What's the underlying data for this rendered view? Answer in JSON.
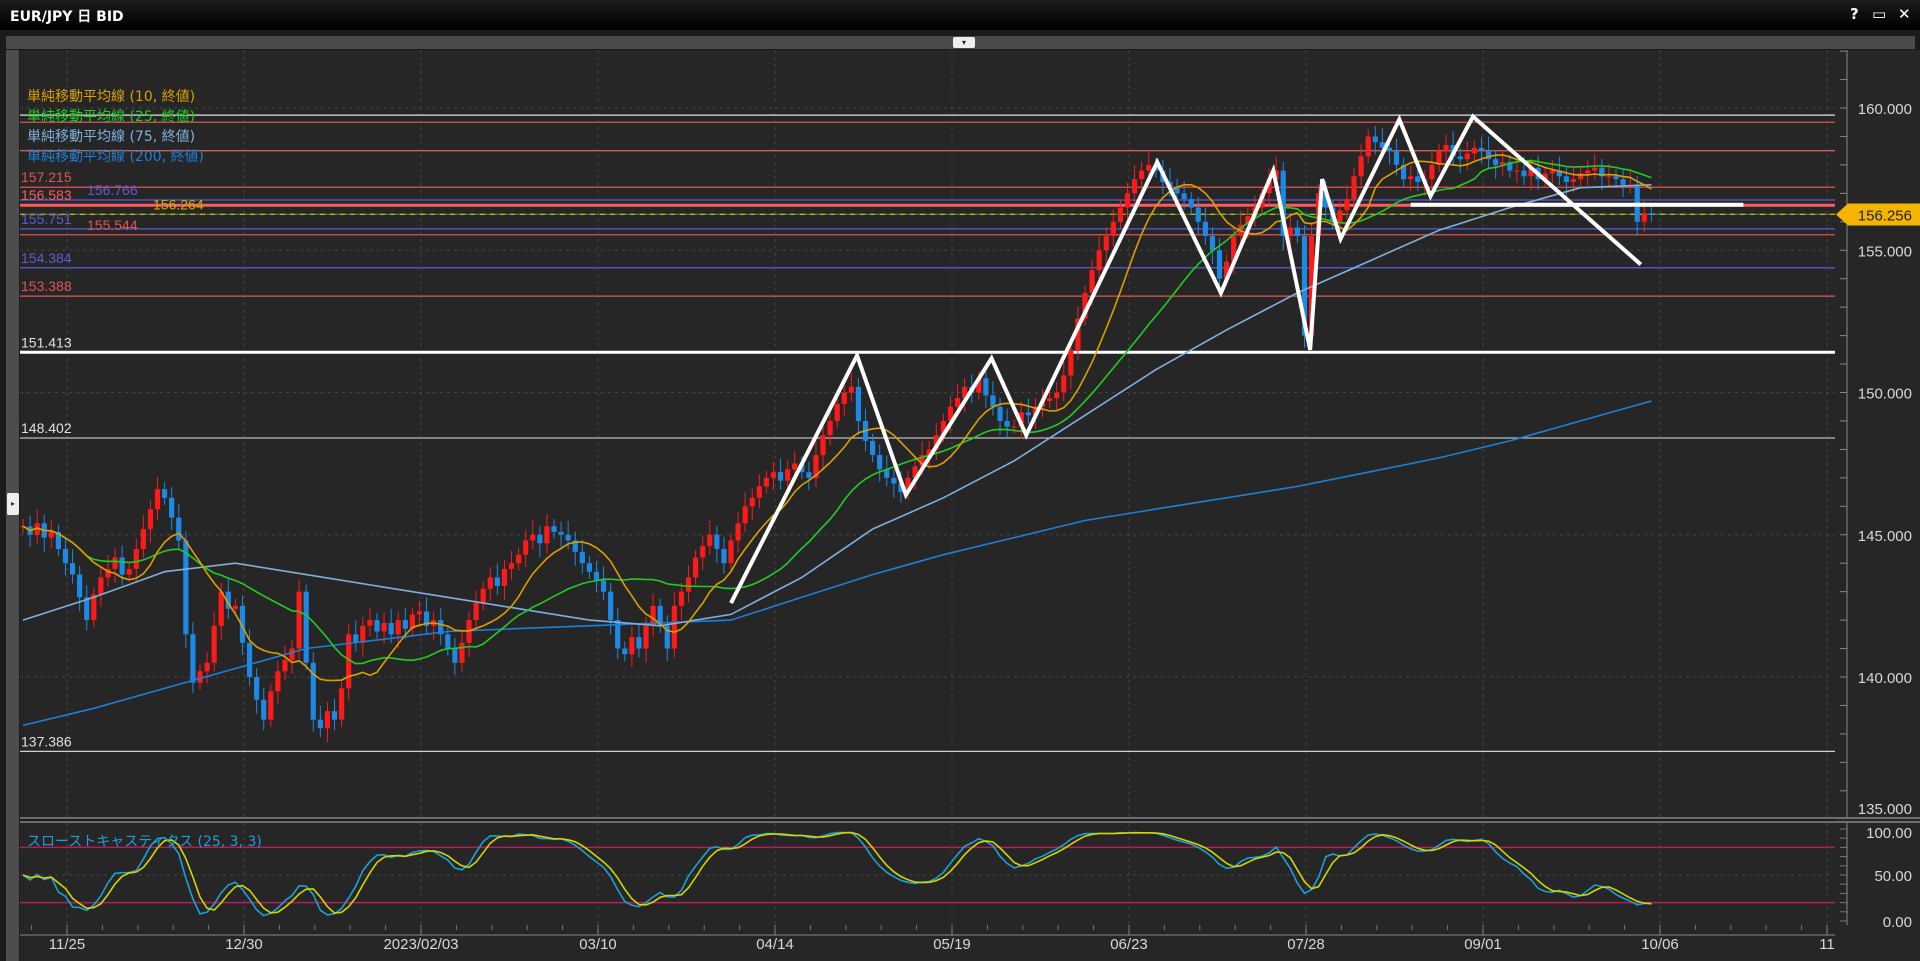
{
  "window": {
    "title": "EUR/JPY 日 BID",
    "buttons": {
      "help": "?",
      "maximize": "▭",
      "close": "✕"
    },
    "dropdown_icon": "▾",
    "side_tab_icon": "▸"
  },
  "legend": [
    {
      "label": "単純移動平均線 (10, 終値)",
      "color": "#d9a000"
    },
    {
      "label": "単純移動平均線 (25, 終値)",
      "color": "#22cc22"
    },
    {
      "label": "単純移動平均線 (75, 終値)",
      "color": "#7fb0de"
    },
    {
      "label": "単純移動平均線 (200, 終値)",
      "color": "#1e7fd8"
    }
  ],
  "stochastic": {
    "label": "スローストキャスティクス (25, 3, 3)",
    "k_color": "#1ba1d6",
    "d_color": "#d4d400",
    "levels": [
      80,
      20
    ],
    "level_color": "#c2185b",
    "axis_labels": [
      "100.00",
      "50.00",
      "0.00"
    ]
  },
  "chart_data": {
    "type": "candlestick",
    "symbol": "EUR/JPY",
    "timeframe": "日",
    "colors": {
      "up": "#ff1a1a",
      "down": "#1e88e5",
      "background": "#262626"
    },
    "ylim": [
      135,
      161.5
    ],
    "y_ticks": [
      "160.000",
      "155.000",
      "150.000",
      "145.000",
      "140.000",
      "135.000"
    ],
    "x_ticks": [
      "11/25",
      "12/30",
      "2023/02/03",
      "03/10",
      "04/14",
      "05/19",
      "06/23",
      "07/28",
      "09/01",
      "10/06",
      "11"
    ],
    "current_price": "156.256",
    "current_price_color": "#f5b400",
    "closes": [
      145.3,
      145.0,
      145.4,
      144.9,
      145.1,
      144.5,
      144.0,
      143.6,
      142.8,
      142.0,
      142.9,
      143.5,
      143.8,
      144.2,
      143.6,
      143.8,
      144.5,
      145.2,
      145.9,
      146.6,
      146.3,
      145.6,
      144.8,
      141.5,
      139.8,
      140.2,
      140.5,
      141.8,
      143.0,
      142.4,
      142.5,
      141.2,
      140.0,
      139.2,
      138.5,
      139.5,
      140.2,
      140.6,
      141.0,
      143.0,
      140.5,
      138.5,
      138.2,
      138.8,
      138.5,
      139.6,
      141.5,
      141.2,
      141.8,
      142.0,
      141.6,
      141.9,
      141.5,
      142.0,
      141.7,
      142.2,
      142.3,
      141.8,
      142.0,
      141.5,
      141.0,
      140.5,
      141.2,
      142.0,
      142.6,
      143.1,
      143.5,
      143.2,
      143.8,
      144.0,
      144.3,
      144.8,
      145.0,
      144.7,
      145.3,
      145.1,
      145.0,
      144.8,
      144.4,
      144.0,
      143.7,
      143.4,
      143.0,
      142.0,
      141.0,
      140.8,
      141.4,
      141.0,
      141.8,
      142.5,
      141.8,
      141.0,
      142.5,
      143.0,
      143.5,
      144.2,
      144.6,
      145.0,
      144.5,
      144.0,
      144.8,
      145.4,
      146.0,
      146.3,
      146.7,
      147.0,
      147.2,
      146.9,
      147.3,
      147.5,
      147.2,
      147.0,
      147.8,
      148.5,
      149.0,
      149.6,
      150.0,
      150.2,
      149.0,
      148.3,
      147.8,
      147.3,
      147.0,
      146.8,
      146.5,
      147.0,
      147.4,
      147.8,
      148.0,
      148.5,
      149.0,
      149.5,
      149.8,
      150.2,
      150.0,
      150.5,
      149.9,
      149.5,
      149.0,
      148.8,
      148.8,
      149.3,
      149.2,
      149.5,
      149.7,
      149.8,
      150.0,
      150.6,
      151.5,
      152.6,
      153.5,
      154.3,
      155.0,
      155.5,
      156.0,
      156.5,
      157.0,
      157.5,
      157.8,
      158.0,
      157.8,
      157.4,
      157.2,
      157.0,
      156.8,
      156.5,
      156.0,
      155.5,
      155.0,
      154.0,
      154.6,
      155.5,
      155.9,
      156.2,
      156.5,
      157.0,
      157.5,
      157.8,
      155.5,
      155.8,
      155.5,
      152.0,
      155.5,
      157.0,
      156.5,
      156.0,
      156.4,
      156.8,
      157.6,
      158.3,
      159.0,
      158.8,
      158.6,
      158.5,
      158.0,
      157.5,
      157.6,
      157.4,
      157.5,
      158.0,
      158.5,
      158.7,
      158.3,
      158.2,
      158.4,
      158.6,
      158.5,
      158.2,
      158.0,
      158.1,
      157.8,
      157.8,
      157.6,
      157.9,
      157.5,
      157.7,
      157.8,
      157.6,
      157.4,
      157.5,
      157.7,
      157.8,
      157.9,
      157.6,
      157.6,
      157.5,
      157.3,
      157.3,
      156.0,
      156.3,
      156.25
    ],
    "ma75_every_10_bars": [
      142.0,
      142.8,
      143.7,
      144.0,
      143.6,
      143.2,
      142.8,
      142.4,
      142.0,
      141.8,
      142.2,
      143.5,
      145.2,
      146.3,
      147.6,
      149.2,
      150.8,
      152.2,
      153.5,
      154.6,
      155.7,
      156.5,
      157.2,
      157.3
    ],
    "ma200_every_10_bars": [
      138.3,
      138.9,
      139.6,
      140.3,
      141.0,
      141.3,
      141.6,
      141.7,
      141.8,
      141.9,
      142.0,
      142.8,
      143.6,
      144.3,
      144.9,
      145.5,
      145.9,
      146.3,
      146.7,
      147.2,
      147.7,
      148.3,
      149.0,
      149.7
    ],
    "horizontal_lines": [
      {
        "price": 159.75,
        "color": "#e0e0e0",
        "label": ""
      },
      {
        "price": 159.5,
        "color": "#e05555",
        "label": ""
      },
      {
        "price": 158.5,
        "color": "#e05555",
        "label": ""
      },
      {
        "price": 157.215,
        "color": "#e05555",
        "label": "157.215"
      },
      {
        "price": 156.766,
        "color": "#5c5cd6",
        "label": "156.766"
      },
      {
        "price": 156.583,
        "color": "#ff5a5a",
        "label": "156.583",
        "thick": true
      },
      {
        "price": 156.264,
        "color": "#c8b400",
        "label": "156.264",
        "dashed": true
      },
      {
        "price": 155.751,
        "color": "#5c5cd6",
        "label": "155.751"
      },
      {
        "price": 155.544,
        "color": "#e05555",
        "label": "155.544"
      },
      {
        "price": 154.384,
        "color": "#5c5cd6",
        "label": "154.384"
      },
      {
        "price": 153.388,
        "color": "#e05555",
        "label": "153.388"
      },
      {
        "price": 151.413,
        "color": "#ffffff",
        "label": "151.413",
        "thick": true
      },
      {
        "price": 148.402,
        "color": "#bdbdbd",
        "label": "148.402"
      },
      {
        "price": 137.386,
        "color": "#d0d0d0",
        "label": "137.386"
      }
    ],
    "drawings": {
      "zigzag": [
        [
          100,
          142.6
        ],
        [
          117.8,
          151.3
        ],
        [
          124.7,
          146.4
        ],
        [
          136.8,
          151.2
        ],
        [
          141.7,
          148.5
        ],
        [
          160.2,
          158.1
        ],
        [
          169.2,
          153.5
        ],
        [
          176.6,
          157.8
        ],
        [
          181.8,
          151.5
        ],
        [
          183.5,
          157.5
        ],
        [
          186.1,
          155.4
        ],
        [
          194.4,
          159.6
        ],
        [
          198.8,
          156.9
        ],
        [
          204.8,
          159.7
        ],
        [
          228.5,
          154.5
        ]
      ],
      "neckline": [
        [
          196,
          156.6
        ],
        [
          243,
          156.6
        ]
      ],
      "color": "#ffffff"
    }
  }
}
